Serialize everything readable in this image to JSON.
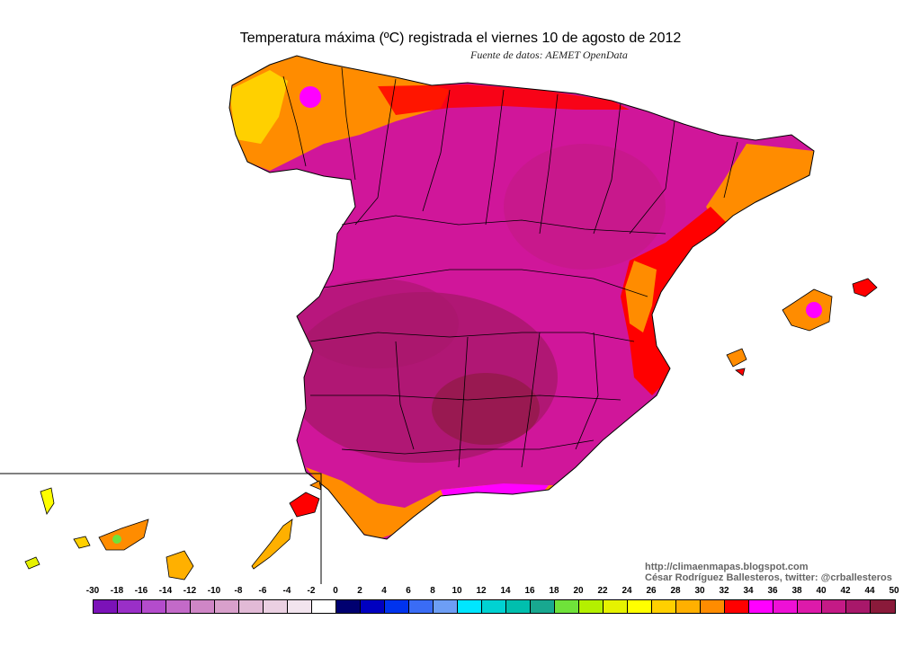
{
  "title": "Temperatura máxima (ºC) registrada el viernes 10 de agosto de 2012",
  "subtitle": "Fuente de datos: AEMET OpenData",
  "credits": {
    "url": "http://climaenmapas.blogspot.com",
    "author": "César Rodríguez Ballesteros, twitter: @crballesteros"
  },
  "legend": {
    "labels": [
      "-30",
      "-18",
      "-16",
      "-14",
      "-12",
      "-10",
      "-8",
      "-6",
      "-4",
      "-2",
      "0",
      "2",
      "4",
      "6",
      "8",
      "10",
      "12",
      "14",
      "16",
      "18",
      "20",
      "22",
      "24",
      "26",
      "28",
      "30",
      "32",
      "34",
      "36",
      "38",
      "40",
      "42",
      "44",
      "50"
    ],
    "colors": [
      "#7b12b8",
      "#9a2fc7",
      "#b44ccc",
      "#c36ac8",
      "#cf86c6",
      "#d8a0cb",
      "#e2bad6",
      "#ebd0e2",
      "#f2e4ee",
      "#ffffff",
      "#000070",
      "#0000c0",
      "#0033ee",
      "#3a6cf5",
      "#6d9ef5",
      "#00e6ff",
      "#00d2d2",
      "#00bfae",
      "#18a890",
      "#6fe23a",
      "#b4f000",
      "#e6f200",
      "#ffff00",
      "#ffd000",
      "#ffb000",
      "#ff8c00",
      "#ff0000",
      "#ff00ff",
      "#ee10d6",
      "#dd1aaa",
      "#c41a86",
      "#a8186a",
      "#8a1a3a"
    ]
  },
  "colors": {
    "hot_dark": "#8a1a3a",
    "hot_magenta": "#c41a86",
    "magenta": "#dd1aaa",
    "pink": "#ff00ff",
    "red": "#ff0000",
    "orange": "#ff8c00",
    "yellow": "#ffd000"
  }
}
